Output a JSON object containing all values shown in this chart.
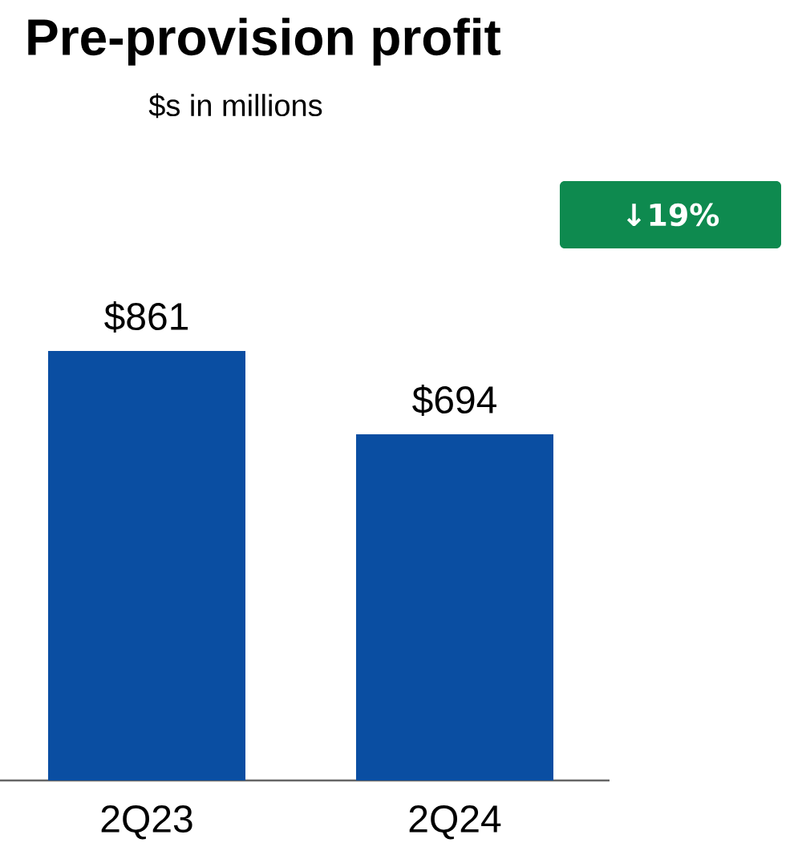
{
  "chart_data": {
    "type": "bar",
    "title": "Pre-provision profit",
    "subtitle": "$s in millions",
    "categories": [
      "2Q23",
      "2Q24"
    ],
    "values": [
      861,
      694
    ],
    "value_labels": [
      "$861",
      "$694"
    ],
    "color": "#0a4ea2",
    "annotations": [
      "↓19%"
    ]
  }
}
